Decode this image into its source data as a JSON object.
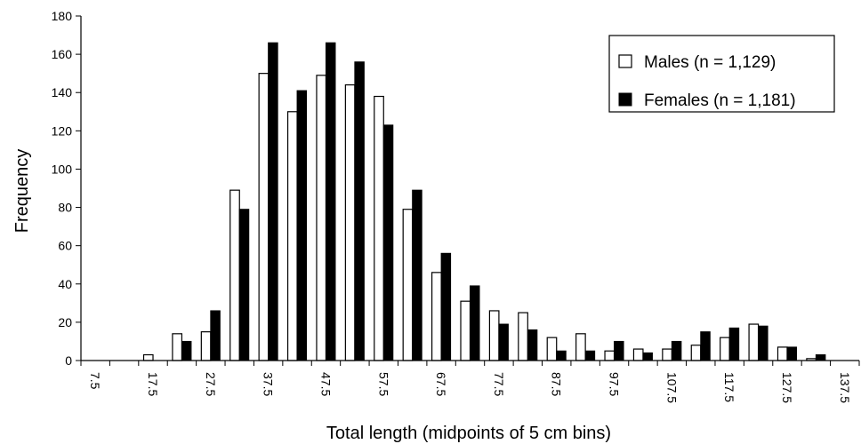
{
  "chart_data": {
    "type": "bar",
    "xlabel": "Total length (midpoints of 5 cm bins)",
    "ylabel": "Frequency",
    "ylim": [
      0,
      180
    ],
    "yticks": [
      0,
      20,
      40,
      60,
      80,
      100,
      120,
      140,
      160,
      180
    ],
    "categories": [
      "7.5",
      "12.5",
      "17.5",
      "22.5",
      "27.5",
      "32.5",
      "37.5",
      "42.5",
      "47.5",
      "52.5",
      "57.5",
      "62.5",
      "67.5",
      "72.5",
      "77.5",
      "82.5",
      "87.5",
      "92.5",
      "97.5",
      "102.5",
      "107.5",
      "112.5",
      "117.5",
      "122.5",
      "127.5",
      "132.5",
      "137.5"
    ],
    "xtick_labels": [
      "7.5",
      "17.5",
      "27.5",
      "37.5",
      "47.5",
      "57.5",
      "67.5",
      "77.5",
      "87.5",
      "97.5",
      "107.5",
      "117.5",
      "127.5",
      "137.5"
    ],
    "series": [
      {
        "name": "Males (n = 1,129)",
        "color": "#ffffff",
        "values": [
          0,
          0,
          3,
          14,
          15,
          89,
          150,
          130,
          149,
          144,
          138,
          79,
          46,
          31,
          26,
          25,
          12,
          14,
          5,
          6,
          6,
          8,
          12,
          19,
          7,
          1,
          0
        ]
      },
      {
        "name": "Females (n = 1,181)",
        "color": "#000000",
        "values": [
          0,
          0,
          0,
          10,
          26,
          79,
          166,
          141,
          166,
          156,
          123,
          89,
          56,
          39,
          19,
          16,
          5,
          5,
          10,
          4,
          10,
          15,
          17,
          18,
          7,
          3,
          0
        ]
      }
    ],
    "legend": "top-right",
    "grid": false
  }
}
